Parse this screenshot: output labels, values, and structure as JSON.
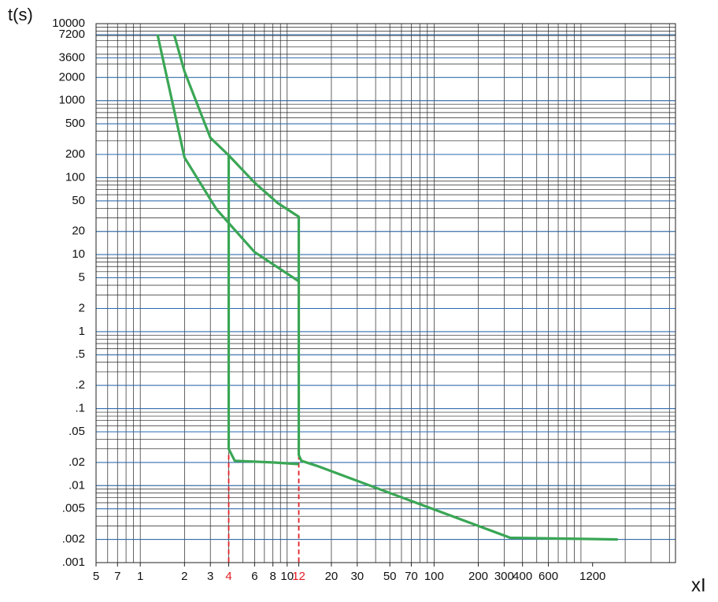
{
  "chart_data": {
    "type": "line",
    "y_label": "t(s)",
    "x_label": "xI",
    "log_x": true,
    "log_y": true,
    "grid": true,
    "major_grid_color": "#2a6ab0",
    "xlim": [
      0.5,
      4400
    ],
    "ylim": [
      0.001,
      10000
    ],
    "xticks": [
      {
        "value": 0.5,
        "label": "5"
      },
      {
        "value": 0.7,
        "label": "7"
      },
      1,
      2,
      3,
      4,
      6,
      8,
      10,
      12,
      20,
      30,
      50,
      70,
      100,
      200,
      300,
      400,
      600,
      1200
    ],
    "yticks": [
      10000,
      7200,
      3600,
      2000,
      1000,
      500,
      200,
      100,
      50,
      20,
      10,
      5,
      2,
      1,
      {
        "value": 0.5,
        "label": ".5"
      },
      {
        "value": 0.2,
        "label": ".2"
      },
      {
        "value": 0.1,
        "label": ".1"
      },
      {
        "value": 0.05,
        "label": ".05"
      },
      {
        "value": 0.02,
        "label": ".02"
      },
      {
        "value": 0.01,
        "label": ".01"
      },
      {
        "value": 0.005,
        "label": ".005"
      },
      {
        "value": 0.002,
        "label": ".002"
      },
      {
        "value": 0.001,
        "label": ".001"
      }
    ],
    "markers": {
      "x": [
        4,
        12
      ],
      "from_y": 0.025,
      "color": "#e31e24"
    },
    "series": [
      {
        "color": "#3aa655",
        "x": [
          1.7,
          2,
          3,
          4,
          6,
          8.6,
          12,
          12,
          12.5,
          16,
          330,
          1780
        ],
        "values": [
          7200,
          2400,
          330,
          195,
          86,
          47,
          31,
          0.025,
          0.021,
          0.018,
          0.0021,
          0.002
        ]
      },
      {
        "color": "#3aa655",
        "x": [
          1.31,
          2,
          3.3,
          4.3,
          6,
          12
        ],
        "values": [
          7200,
          183,
          39,
          22,
          10.8,
          4.5
        ]
      },
      {
        "color": "#3aa655",
        "x": [
          4,
          4,
          4.4,
          8,
          12
        ],
        "values": [
          195,
          0.03,
          0.021,
          0.02,
          0.019
        ]
      }
    ]
  }
}
